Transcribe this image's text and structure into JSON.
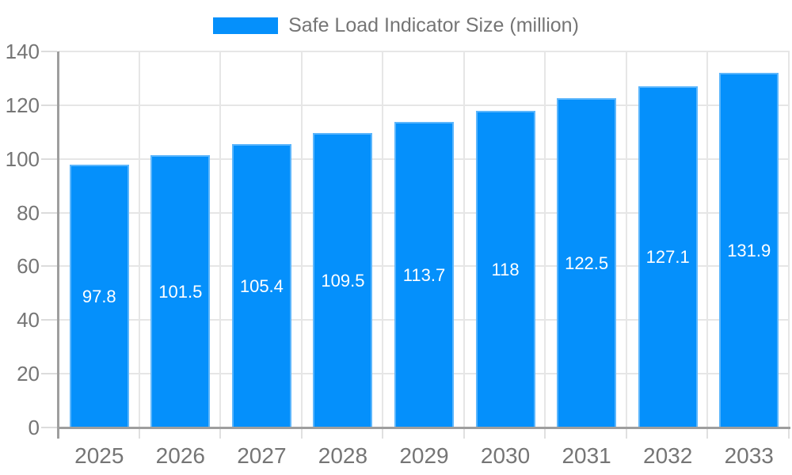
{
  "legend": {
    "label": "Safe Load Indicator Size (million)",
    "position": "top"
  },
  "chart_data": {
    "type": "bar",
    "title": "Safe Load Indicator Size (million)",
    "series_name": "Safe Load Indicator Size (million)",
    "categories": [
      "2025",
      "2026",
      "2027",
      "2028",
      "2029",
      "2030",
      "2031",
      "2032",
      "2033"
    ],
    "values": [
      97.8,
      101.5,
      105.4,
      109.5,
      113.7,
      118,
      122.5,
      127.1,
      131.9
    ],
    "value_labels": [
      "97.8",
      "101.5",
      "105.4",
      "109.5",
      "113.7",
      "118",
      "122.5",
      "127.1",
      "131.9"
    ],
    "xlabel": "",
    "ylabel": "",
    "ylim": [
      0,
      140
    ],
    "yticks": [
      0,
      20,
      40,
      60,
      80,
      100,
      120,
      140
    ],
    "grid": true,
    "legend_position": "top",
    "colors": {
      "bar": "#0590fb",
      "bar_edge": "rgba(255,255,255,0.35)",
      "value_label": "#ffffff",
      "axis_line": "#9e9e9e",
      "gridline": "#e6e6e6",
      "tick_label": "#757575",
      "legend_text": "#757575",
      "background": "#ffffff"
    }
  }
}
